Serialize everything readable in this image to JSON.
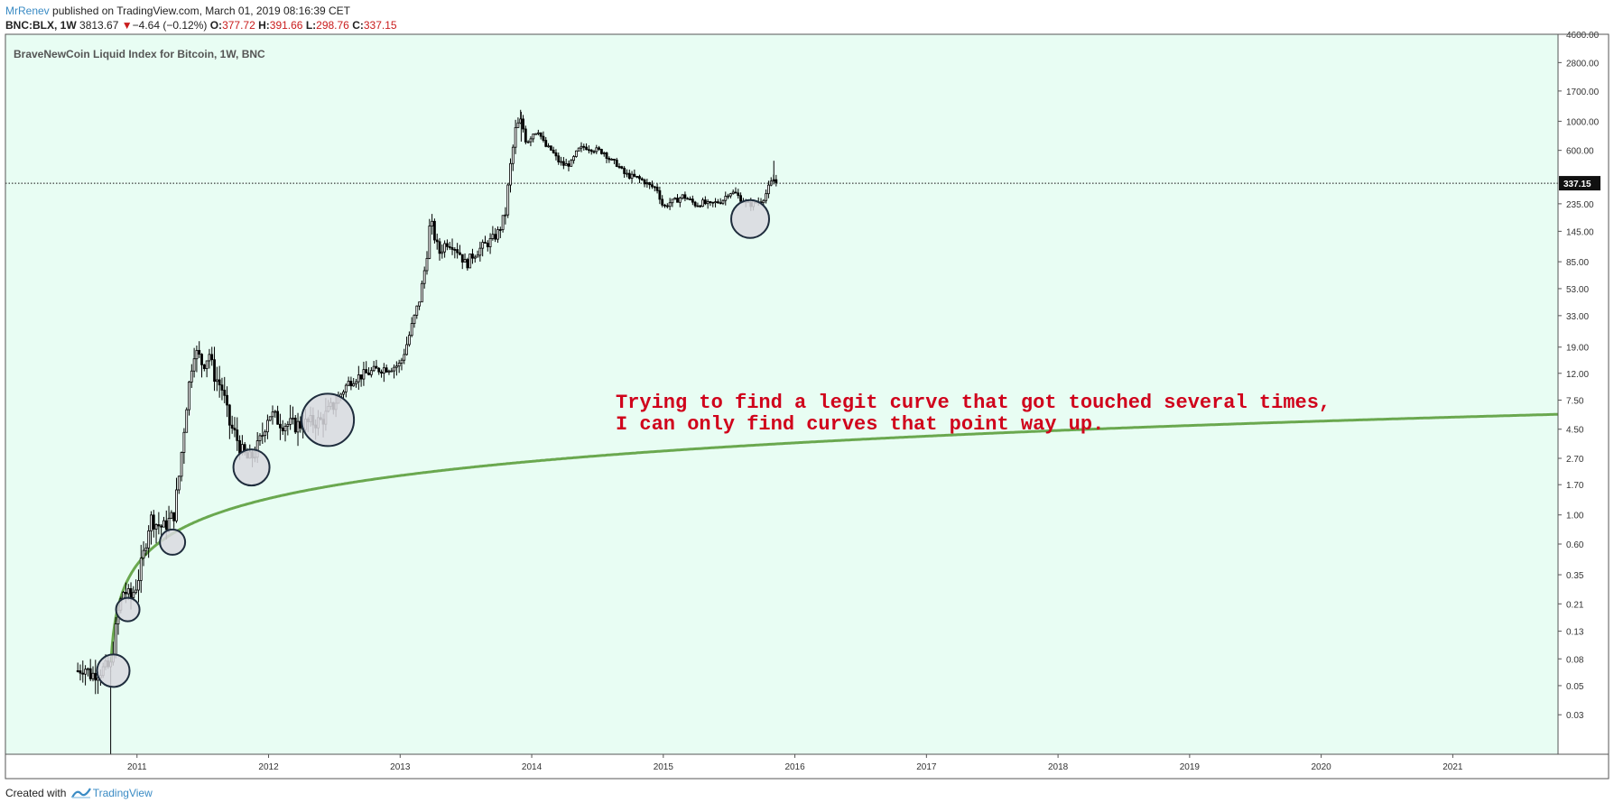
{
  "header": {
    "user": "MrRenev",
    "published": " published on TradingView.com, March 01, 2019 08:16:39 CET",
    "symbol": "BNC:BLX, 1W",
    "price": "3813.67",
    "change": "−4.64 (−0.12%)",
    "down_glyph": "▼",
    "o_label": "O:",
    "o_value": "377.72",
    "h_label": "H:",
    "h_value": "391.66",
    "l_label": "L:",
    "l_value": "298.76",
    "c_label": "C:",
    "c_value": "337.15"
  },
  "footer": {
    "created": "Created with ",
    "brand": "TradingView"
  },
  "colors": {
    "background": "#e8fdf3",
    "curve": "#6aa84f",
    "annotation": "#d0021b",
    "candles": "#000000",
    "circle_fill": "#d9d9df",
    "circle_stroke": "#1f2d3d"
  },
  "chart_data": {
    "type": "candlestick",
    "title": "BraveNewCoin Liquid Index for Bitcoin, 1W, BNC",
    "y_scale": "log",
    "ylim": [
      0.015,
      4600
    ],
    "xlim": [
      2010.0,
      2021.8
    ],
    "y_ticks": [
      "4600.00",
      "2800.00",
      "1700.00",
      "1000.00",
      "600.00",
      "235.00",
      "145.00",
      "85.00",
      "53.00",
      "33.00",
      "19.00",
      "12.00",
      "7.50",
      "4.50",
      "2.70",
      "1.70",
      "1.00",
      "0.60",
      "0.35",
      "0.21",
      "0.13",
      "0.08",
      "0.05",
      "0.03"
    ],
    "x_ticks": [
      "2011",
      "2012",
      "2013",
      "2014",
      "2015",
      "2016",
      "2017",
      "2018",
      "2019",
      "2020",
      "2021"
    ],
    "last_price": 337.15,
    "last_price_label": "337.15",
    "grid": false,
    "annotation": [
      "Trying to find a legit curve that got touched several times,",
      "I can only find curves that point way up."
    ],
    "price_path": [
      {
        "t": 2010.55,
        "p": 0.065
      },
      {
        "t": 2010.6,
        "p": 0.07
      },
      {
        "t": 2010.65,
        "p": 0.06
      },
      {
        "t": 2010.72,
        "p": 0.065
      },
      {
        "t": 2010.8,
        "p": 0.07
      },
      {
        "t": 2010.86,
        "p": 0.19
      },
      {
        "t": 2010.9,
        "p": 0.27
      },
      {
        "t": 2010.95,
        "p": 0.23
      },
      {
        "t": 2011.0,
        "p": 0.3
      },
      {
        "t": 2011.05,
        "p": 0.5
      },
      {
        "t": 2011.1,
        "p": 0.95
      },
      {
        "t": 2011.15,
        "p": 0.85
      },
      {
        "t": 2011.2,
        "p": 0.8
      },
      {
        "t": 2011.28,
        "p": 1.0
      },
      {
        "t": 2011.32,
        "p": 2.0
      },
      {
        "t": 2011.38,
        "p": 7.5
      },
      {
        "t": 2011.43,
        "p": 18.0
      },
      {
        "t": 2011.47,
        "p": 16.0
      },
      {
        "t": 2011.5,
        "p": 14.0
      },
      {
        "t": 2011.55,
        "p": 17.0
      },
      {
        "t": 2011.58,
        "p": 12.0
      },
      {
        "t": 2011.65,
        "p": 9.0
      },
      {
        "t": 2011.7,
        "p": 5.0
      },
      {
        "t": 2011.75,
        "p": 4.0
      },
      {
        "t": 2011.8,
        "p": 3.0
      },
      {
        "t": 2011.85,
        "p": 2.6
      },
      {
        "t": 2011.9,
        "p": 3.0
      },
      {
        "t": 2011.95,
        "p": 4.0
      },
      {
        "t": 2012.0,
        "p": 6.0
      },
      {
        "t": 2012.05,
        "p": 5.5
      },
      {
        "t": 2012.1,
        "p": 5.0
      },
      {
        "t": 2012.2,
        "p": 4.8
      },
      {
        "t": 2012.3,
        "p": 5.0
      },
      {
        "t": 2012.4,
        "p": 5.2
      },
      {
        "t": 2012.45,
        "p": 6.0
      },
      {
        "t": 2012.5,
        "p": 7.0
      },
      {
        "t": 2012.6,
        "p": 10.0
      },
      {
        "t": 2012.65,
        "p": 11.0
      },
      {
        "t": 2012.75,
        "p": 12.0
      },
      {
        "t": 2012.85,
        "p": 13.0
      },
      {
        "t": 2012.95,
        "p": 13.5
      },
      {
        "t": 2013.0,
        "p": 14.0
      },
      {
        "t": 2013.05,
        "p": 20.0
      },
      {
        "t": 2013.1,
        "p": 30.0
      },
      {
        "t": 2013.15,
        "p": 45.0
      },
      {
        "t": 2013.2,
        "p": 90.0
      },
      {
        "t": 2013.23,
        "p": 180.0
      },
      {
        "t": 2013.27,
        "p": 120.0
      },
      {
        "t": 2013.3,
        "p": 100.0
      },
      {
        "t": 2013.35,
        "p": 120.0
      },
      {
        "t": 2013.4,
        "p": 115.0
      },
      {
        "t": 2013.45,
        "p": 100.0
      },
      {
        "t": 2013.5,
        "p": 80.0
      },
      {
        "t": 2013.55,
        "p": 95.0
      },
      {
        "t": 2013.6,
        "p": 105.0
      },
      {
        "t": 2013.65,
        "p": 115.0
      },
      {
        "t": 2013.7,
        "p": 125.0
      },
      {
        "t": 2013.75,
        "p": 145.0
      },
      {
        "t": 2013.8,
        "p": 200.0
      },
      {
        "t": 2013.83,
        "p": 400.0
      },
      {
        "t": 2013.88,
        "p": 900.0
      },
      {
        "t": 2013.92,
        "p": 1000.0
      },
      {
        "t": 2013.96,
        "p": 700.0
      },
      {
        "t": 2014.0,
        "p": 800.0
      },
      {
        "t": 2014.05,
        "p": 850.0
      },
      {
        "t": 2014.1,
        "p": 650.0
      },
      {
        "t": 2014.15,
        "p": 600.0
      },
      {
        "t": 2014.2,
        "p": 500.0
      },
      {
        "t": 2014.25,
        "p": 460.0
      },
      {
        "t": 2014.3,
        "p": 480.0
      },
      {
        "t": 2014.35,
        "p": 600.0
      },
      {
        "t": 2014.4,
        "p": 640.0
      },
      {
        "t": 2014.45,
        "p": 620.0
      },
      {
        "t": 2014.5,
        "p": 600.0
      },
      {
        "t": 2014.55,
        "p": 580.0
      },
      {
        "t": 2014.6,
        "p": 500.0
      },
      {
        "t": 2014.65,
        "p": 470.0
      },
      {
        "t": 2014.7,
        "p": 400.0
      },
      {
        "t": 2014.75,
        "p": 380.0
      },
      {
        "t": 2014.8,
        "p": 370.0
      },
      {
        "t": 2014.85,
        "p": 350.0
      },
      {
        "t": 2014.9,
        "p": 320.0
      },
      {
        "t": 2014.95,
        "p": 310.0
      },
      {
        "t": 2015.0,
        "p": 220.0
      },
      {
        "t": 2015.05,
        "p": 240.0
      },
      {
        "t": 2015.1,
        "p": 250.0
      },
      {
        "t": 2015.15,
        "p": 270.0
      },
      {
        "t": 2015.2,
        "p": 250.0
      },
      {
        "t": 2015.25,
        "p": 230.0
      },
      {
        "t": 2015.3,
        "p": 240.0
      },
      {
        "t": 2015.35,
        "p": 230.0
      },
      {
        "t": 2015.4,
        "p": 240.0
      },
      {
        "t": 2015.45,
        "p": 250.0
      },
      {
        "t": 2015.5,
        "p": 290.0
      },
      {
        "t": 2015.55,
        "p": 280.0
      },
      {
        "t": 2015.6,
        "p": 250.0
      },
      {
        "t": 2015.65,
        "p": 230.0
      },
      {
        "t": 2015.7,
        "p": 240.0
      },
      {
        "t": 2015.75,
        "p": 250.0
      },
      {
        "t": 2015.78,
        "p": 280.0
      },
      {
        "t": 2015.81,
        "p": 330.0
      },
      {
        "t": 2015.84,
        "p": 360.0
      },
      {
        "t": 2015.86,
        "p": 337.15
      }
    ]
  }
}
